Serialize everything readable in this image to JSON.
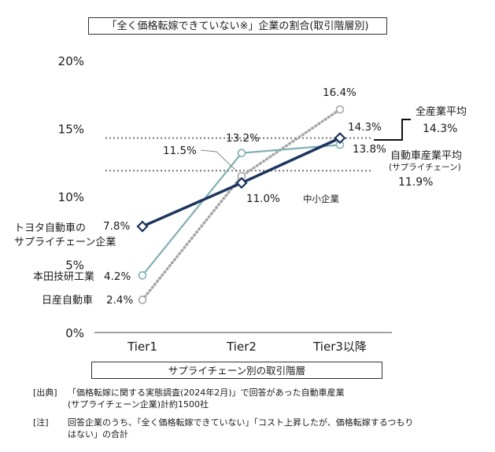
{
  "chart_data": {
    "type": "line",
    "title": "「全く価格転嫁できていない※」企業の割合(取引階層別)",
    "xlabel": "サプライチェーン別の取引階層",
    "categories": [
      "Tier1",
      "Tier2",
      "Tier3以降"
    ],
    "y_ticks": [
      "0%",
      "5%",
      "10%",
      "15%",
      "20%"
    ],
    "ylim": [
      0,
      20
    ],
    "series": [
      {
        "name": "トヨタ自動車の\nサプライチェーン企業",
        "values": [
          7.8,
          11.0,
          14.3
        ],
        "value_labels": [
          "7.8%",
          "11.0%",
          "14.3%"
        ],
        "color": "#1c355e",
        "style": "solid-thick",
        "marker": "diamond"
      },
      {
        "name": "本田技研工業",
        "values": [
          4.2,
          13.2,
          13.8
        ],
        "value_labels": [
          "4.2%",
          "13.2%",
          "13.8%"
        ],
        "color": "#7fb0b4",
        "style": "solid",
        "marker": "circle"
      },
      {
        "name": "日産自動車",
        "values": [
          2.4,
          11.5,
          16.4
        ],
        "value_labels": [
          "2.4%",
          "11.5%",
          "16.4%"
        ],
        "color": "#a6a6a6",
        "style": "dotted",
        "marker": "circle"
      }
    ],
    "reference_lines": [
      {
        "name": "全産業平均",
        "value": 14.3,
        "value_label": "14.3%"
      },
      {
        "name": "自動車産業平均",
        "sub": "(サプライチェーン)",
        "value": 11.9,
        "value_label": "11.9%"
      }
    ],
    "annotation": "中小企業"
  },
  "notes": {
    "source_tag": "[出典]",
    "source_line1": "「価格転嫁に関する実態調査(2024年2月)」で回答があった自動車産業",
    "source_line2": "(サプライチェーン企業)計約1500社",
    "note_tag": "[注]",
    "note_line1": "回答企業のうち、「全く価格転嫁できていない」「コスト上昇したが、価格転嫁するつもり",
    "note_line2": "はない」の合計"
  }
}
